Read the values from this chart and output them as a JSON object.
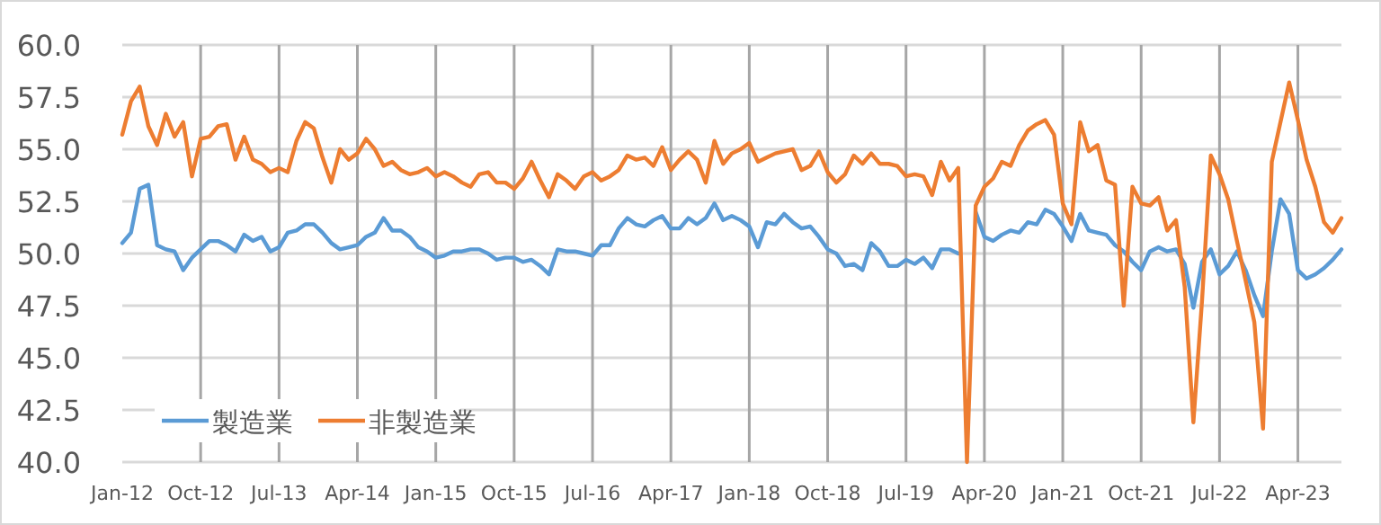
{
  "chart_data": {
    "type": "line",
    "x": [
      "2012-01",
      "2012-02",
      "2012-03",
      "2012-04",
      "2012-05",
      "2012-06",
      "2012-07",
      "2012-08",
      "2012-09",
      "2012-10",
      "2012-11",
      "2012-12",
      "2013-01",
      "2013-02",
      "2013-03",
      "2013-04",
      "2013-05",
      "2013-06",
      "2013-07",
      "2013-08",
      "2013-09",
      "2013-10",
      "2013-11",
      "2013-12",
      "2014-01",
      "2014-02",
      "2014-03",
      "2014-04",
      "2014-05",
      "2014-06",
      "2014-07",
      "2014-08",
      "2014-09",
      "2014-10",
      "2014-11",
      "2014-12",
      "2015-01",
      "2015-02",
      "2015-03",
      "2015-04",
      "2015-05",
      "2015-06",
      "2015-07",
      "2015-08",
      "2015-09",
      "2015-10",
      "2015-11",
      "2015-12",
      "2016-01",
      "2016-02",
      "2016-03",
      "2016-04",
      "2016-05",
      "2016-06",
      "2016-07",
      "2016-08",
      "2016-09",
      "2016-10",
      "2016-11",
      "2016-12",
      "2017-01",
      "2017-02",
      "2017-03",
      "2017-04",
      "2017-05",
      "2017-06",
      "2017-07",
      "2017-08",
      "2017-09",
      "2017-10",
      "2017-11",
      "2017-12",
      "2018-01",
      "2018-02",
      "2018-03",
      "2018-04",
      "2018-05",
      "2018-06",
      "2018-07",
      "2018-08",
      "2018-09",
      "2018-10",
      "2018-11",
      "2018-12",
      "2019-01",
      "2019-02",
      "2019-03",
      "2019-04",
      "2019-05",
      "2019-06",
      "2019-07",
      "2019-08",
      "2019-09",
      "2019-10",
      "2019-11",
      "2019-12",
      "2020-01",
      "2020-02",
      "2020-03",
      "2020-04",
      "2020-05",
      "2020-06",
      "2020-07",
      "2020-08",
      "2020-09",
      "2020-10",
      "2020-11",
      "2020-12",
      "2021-01",
      "2021-02",
      "2021-03",
      "2021-04",
      "2021-05",
      "2021-06",
      "2021-07",
      "2021-08",
      "2021-09",
      "2021-10",
      "2021-11",
      "2021-12",
      "2022-01",
      "2022-02",
      "2022-03",
      "2022-04",
      "2022-05",
      "2022-06",
      "2022-07",
      "2022-08",
      "2022-09",
      "2022-10",
      "2022-11",
      "2022-12",
      "2023-01",
      "2023-02",
      "2023-03",
      "2023-04",
      "2023-05",
      "2023-06",
      "2023-07",
      "2023-08",
      "2023-09"
    ],
    "series": [
      {
        "name": "製造業",
        "color": "#5b9bd5",
        "values": [
          50.5,
          51.0,
          53.1,
          53.3,
          50.4,
          50.2,
          50.1,
          49.2,
          49.8,
          50.2,
          50.6,
          50.6,
          50.4,
          50.1,
          50.9,
          50.6,
          50.8,
          50.1,
          50.3,
          51.0,
          51.1,
          51.4,
          51.4,
          51.0,
          50.5,
          50.2,
          50.3,
          50.4,
          50.8,
          51.0,
          51.7,
          51.1,
          51.1,
          50.8,
          50.3,
          50.1,
          49.8,
          49.9,
          50.1,
          50.1,
          50.2,
          50.2,
          50.0,
          49.7,
          49.8,
          49.8,
          49.6,
          49.7,
          49.4,
          49.0,
          50.2,
          50.1,
          50.1,
          50.0,
          49.9,
          50.4,
          50.4,
          51.2,
          51.7,
          51.4,
          51.3,
          51.6,
          51.8,
          51.2,
          51.2,
          51.7,
          51.4,
          51.7,
          52.4,
          51.6,
          51.8,
          51.6,
          51.3,
          50.3,
          51.5,
          51.4,
          51.9,
          51.5,
          51.2,
          51.3,
          50.8,
          50.2,
          50.0,
          49.4,
          49.5,
          49.2,
          50.5,
          50.1,
          49.4,
          49.4,
          49.7,
          49.5,
          49.8,
          49.3,
          50.2,
          50.2,
          50.0,
          null,
          52.0,
          50.8,
          50.6,
          50.9,
          51.1,
          51.0,
          51.5,
          51.4,
          52.1,
          51.9,
          51.3,
          50.6,
          51.9,
          51.1,
          51.0,
          50.9,
          50.4,
          50.1,
          49.6,
          49.2,
          50.1,
          50.3,
          50.1,
          50.2,
          49.5,
          47.4,
          49.6,
          50.2,
          49.0,
          49.4,
          50.1,
          49.2,
          48.0,
          47.0,
          50.1,
          52.6,
          51.9,
          49.2,
          48.8,
          49.0,
          49.3,
          49.7,
          50.2
        ]
      },
      {
        "name": "非製造業",
        "color": "#ed7d31",
        "values": [
          55.7,
          57.3,
          58.0,
          56.1,
          55.2,
          56.7,
          55.6,
          56.3,
          53.7,
          55.5,
          55.6,
          56.1,
          56.2,
          54.5,
          55.6,
          54.5,
          54.3,
          53.9,
          54.1,
          53.9,
          55.4,
          56.3,
          56.0,
          54.6,
          53.4,
          55.0,
          54.5,
          54.8,
          55.5,
          55.0,
          54.2,
          54.4,
          54.0,
          53.8,
          53.9,
          54.1,
          53.7,
          53.9,
          53.7,
          53.4,
          53.2,
          53.8,
          53.9,
          53.4,
          53.4,
          53.1,
          53.6,
          54.4,
          53.5,
          52.7,
          53.8,
          53.5,
          53.1,
          53.7,
          53.9,
          53.5,
          53.7,
          54.0,
          54.7,
          54.5,
          54.6,
          54.2,
          55.1,
          54.0,
          54.5,
          54.9,
          54.5,
          53.4,
          55.4,
          54.3,
          54.8,
          55.0,
          55.3,
          54.4,
          54.6,
          54.8,
          54.9,
          55.0,
          54.0,
          54.2,
          54.9,
          53.9,
          53.4,
          53.8,
          54.7,
          54.3,
          54.8,
          54.3,
          54.3,
          54.2,
          53.7,
          53.8,
          53.7,
          52.8,
          54.4,
          53.5,
          54.1,
          40.0,
          52.3,
          53.2,
          53.6,
          54.4,
          54.2,
          55.2,
          55.9,
          56.2,
          56.4,
          55.7,
          52.4,
          51.4,
          56.3,
          54.9,
          55.2,
          53.5,
          53.3,
          47.5,
          53.2,
          52.4,
          52.3,
          52.7,
          51.1,
          51.6,
          48.4,
          41.9,
          47.8,
          54.7,
          53.8,
          52.6,
          50.6,
          48.7,
          46.7,
          41.6,
          54.4,
          56.3,
          58.2,
          56.4,
          54.5,
          53.2,
          51.5,
          51.0,
          51.7
        ]
      }
    ],
    "xlim": [
      "2012-01",
      "2023-09"
    ],
    "xticks": [
      {
        "value": "2012-01",
        "label": "Jan-12"
      },
      {
        "value": "2012-10",
        "label": "Oct-12"
      },
      {
        "value": "2013-07",
        "label": "Jul-13"
      },
      {
        "value": "2014-04",
        "label": "Apr-14"
      },
      {
        "value": "2015-01",
        "label": "Jan-15"
      },
      {
        "value": "2015-10",
        "label": "Oct-15"
      },
      {
        "value": "2016-07",
        "label": "Jul-16"
      },
      {
        "value": "2017-04",
        "label": "Apr-17"
      },
      {
        "value": "2018-01",
        "label": "Jan-18"
      },
      {
        "value": "2018-10",
        "label": "Oct-18"
      },
      {
        "value": "2019-07",
        "label": "Jul-19"
      },
      {
        "value": "2020-04",
        "label": "Apr-20"
      },
      {
        "value": "2021-01",
        "label": "Jan-21"
      },
      {
        "value": "2021-10",
        "label": "Oct-21"
      },
      {
        "value": "2022-07",
        "label": "Jul-22"
      },
      {
        "value": "2023-04",
        "label": "Apr-23"
      }
    ],
    "ylim": [
      40,
      60
    ],
    "yticks": [
      {
        "value": 40,
        "label": "40.0"
      },
      {
        "value": 42.5,
        "label": "42.5"
      },
      {
        "value": 45,
        "label": "45.0"
      },
      {
        "value": 47.5,
        "label": "47.5"
      },
      {
        "value": 50,
        "label": "50.0"
      },
      {
        "value": 52.5,
        "label": "52.5"
      },
      {
        "value": 55,
        "label": "55.0"
      },
      {
        "value": 57.5,
        "label": "57.5"
      },
      {
        "value": 60,
        "label": "60.0"
      }
    ],
    "grid": true,
    "legend": "bottom left",
    "marker": "none",
    "line_style": "solid"
  }
}
